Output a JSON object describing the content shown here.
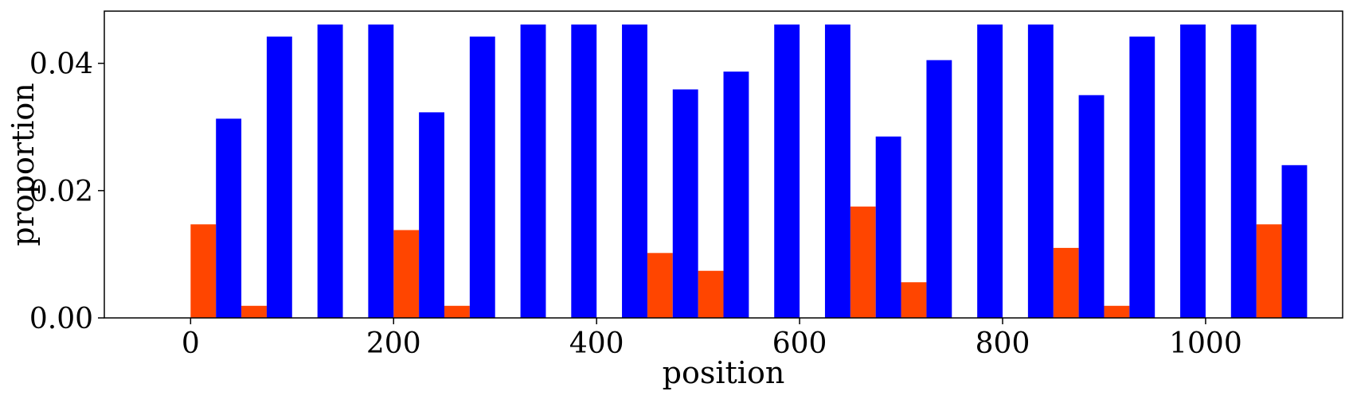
{
  "chart_data": {
    "type": "bar",
    "xlabel": "position",
    "ylabel": "proportion",
    "xlim": [
      -85,
      1135
    ],
    "ylim": [
      0,
      0.0482
    ],
    "xticks": [
      0,
      200,
      400,
      600,
      800,
      1000
    ],
    "xtick_labels": [
      "0",
      "200",
      "400",
      "600",
      "800",
      "1000"
    ],
    "yticks": [
      0,
      0.02,
      0.04
    ],
    "ytick_labels": [
      "0.00",
      "0.02",
      "0.04"
    ],
    "bar_width": 25,
    "grid": false,
    "legend": "none",
    "x": [
      0,
      50,
      100,
      150,
      200,
      250,
      300,
      350,
      400,
      450,
      500,
      550,
      600,
      650,
      700,
      750,
      800,
      850,
      900,
      950,
      1000,
      1050
    ],
    "series": [
      {
        "color": "#ff4500",
        "offset": 0,
        "values": [
          0.0147,
          0.0019,
          0,
          0,
          0.0138,
          0.0019,
          0,
          0,
          0,
          0.0102,
          0.0074,
          0,
          0,
          0.0175,
          0.0056,
          0,
          0,
          0.011,
          0.0019,
          0,
          0,
          0.0147
        ]
      },
      {
        "color": "#0000ff",
        "offset": 25,
        "values": [
          0.0313,
          0.0442,
          0.0461,
          0.0461,
          0.0323,
          0.0442,
          0.0461,
          0.0461,
          0.0461,
          0.0359,
          0.0387,
          0.0461,
          0.0461,
          0.0285,
          0.0405,
          0.0461,
          0.0461,
          0.035,
          0.0442,
          0.0461,
          0.0461,
          0.024
        ]
      }
    ]
  }
}
